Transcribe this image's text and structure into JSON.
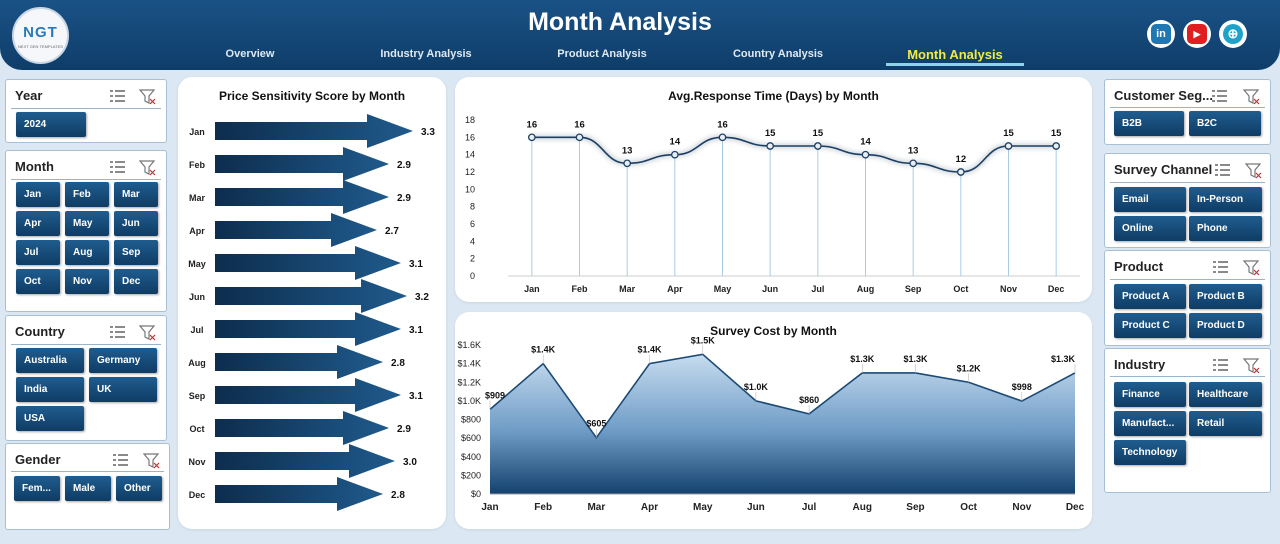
{
  "header": {
    "title": "Month Analysis",
    "logo_text": "NGT",
    "logo_sub": "NEXT GEN TEMPLATES",
    "tabs": [
      "Overview",
      "Industry Analysis",
      "Product Analysis",
      "Country Analysis",
      "Month Analysis"
    ],
    "social": [
      "in",
      "▶",
      "⊕"
    ]
  },
  "left_slicers": {
    "year": {
      "title": "Year",
      "items": [
        "2024"
      ]
    },
    "month": {
      "title": "Month",
      "items": [
        "Jan",
        "Feb",
        "Mar",
        "Apr",
        "May",
        "Jun",
        "Jul",
        "Aug",
        "Sep",
        "Oct",
        "Nov",
        "Dec"
      ]
    },
    "country": {
      "title": "Country",
      "items": [
        "Australia",
        "Germany",
        "India",
        "UK",
        "USA"
      ]
    },
    "gender": {
      "title": "Gender",
      "items": [
        "Fem...",
        "Male",
        "Other"
      ]
    }
  },
  "right_slicers": {
    "segment": {
      "title": "Customer Seg...",
      "items": [
        "B2B",
        "B2C"
      ]
    },
    "channel": {
      "title": "Survey Channel",
      "items": [
        "Email",
        "In-Person",
        "Online",
        "Phone"
      ]
    },
    "product": {
      "title": "Product",
      "items": [
        "Product A",
        "Product B",
        "Product C",
        "Product D"
      ]
    },
    "industry": {
      "title": "Industry",
      "items": [
        "Finance",
        "Healthcare",
        "Manufact...",
        "Retail",
        "Technology"
      ]
    }
  },
  "chart_data": [
    {
      "type": "bar",
      "title": "Price Sensitivity Score by Month",
      "categories": [
        "Jan",
        "Feb",
        "Mar",
        "Apr",
        "May",
        "Jun",
        "Jul",
        "Aug",
        "Sep",
        "Oct",
        "Nov",
        "Dec"
      ],
      "values": [
        3.3,
        2.9,
        2.9,
        2.7,
        3.1,
        3.2,
        3.1,
        2.8,
        3.1,
        2.9,
        3.0,
        2.8
      ],
      "orientation": "horizontal",
      "color": "#1c4f7e"
    },
    {
      "type": "line",
      "title": "Avg.Response Time (Days) by Month",
      "categories": [
        "Jan",
        "Feb",
        "Mar",
        "Apr",
        "May",
        "Jun",
        "Jul",
        "Aug",
        "Sep",
        "Oct",
        "Nov",
        "Dec"
      ],
      "values": [
        16,
        16,
        13,
        14,
        16,
        15,
        15,
        14,
        13,
        12,
        15,
        15
      ],
      "ylim": [
        0,
        18
      ],
      "yticks": [
        0,
        2,
        4,
        6,
        8,
        10,
        12,
        14,
        16,
        18
      ],
      "color": "#1c3f63"
    },
    {
      "type": "area",
      "title": "Survey Cost by Month",
      "categories": [
        "Jan",
        "Feb",
        "Mar",
        "Apr",
        "May",
        "Jun",
        "Jul",
        "Aug",
        "Sep",
        "Oct",
        "Nov",
        "Dec"
      ],
      "values": [
        909,
        1400,
        605,
        1400,
        1500,
        1000,
        860,
        1300,
        1300,
        1200,
        998,
        1300
      ],
      "labels": [
        "$909",
        "$1.4K",
        "$605",
        "$1.4K",
        "$1.5K",
        "$1.0K",
        "$860",
        "$1.3K",
        "$1.3K",
        "$1.2K",
        "$998",
        "$1.3K"
      ],
      "ylim": [
        0,
        1600
      ],
      "yticks": [
        "$0",
        "$200",
        "$400",
        "$600",
        "$800",
        "$1.0K",
        "$1.2K",
        "$1.4K",
        "$1.6K"
      ],
      "color": "#1c4a75"
    }
  ]
}
